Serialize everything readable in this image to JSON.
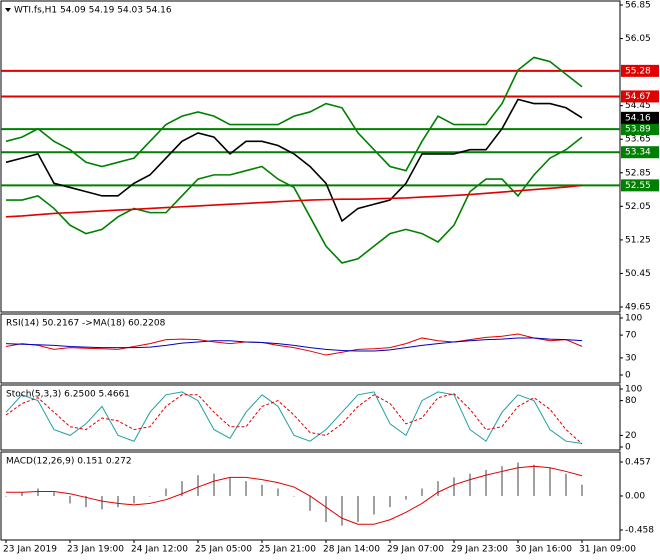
{
  "chart_data": [
    {
      "type": "line",
      "title": "WTI.fs,H1  54.09 54.19 54.03 54.16",
      "ylim": [
        49.65,
        56.85
      ],
      "yticks": [
        56.85,
        56.05,
        54.45,
        53.65,
        52.85,
        52.05,
        51.25,
        50.45,
        49.65
      ],
      "series": [
        {
          "color": "#000000",
          "values": [
            53.1,
            53.2,
            53.3,
            52.6,
            52.5,
            52.4,
            52.3,
            52.3,
            52.6,
            52.8,
            53.2,
            53.6,
            53.8,
            53.7,
            53.3,
            53.6,
            53.6,
            53.5,
            53.3,
            53.0,
            52.6,
            51.7,
            52.0,
            52.1,
            52.2,
            52.6,
            53.3,
            53.3,
            53.3,
            53.4,
            53.4,
            53.9,
            54.6,
            54.5,
            54.5,
            54.4,
            54.16
          ]
        },
        {
          "color": "#008000",
          "values": [
            53.6,
            53.7,
            53.9,
            53.6,
            53.4,
            53.1,
            53.0,
            53.1,
            53.2,
            53.6,
            54.0,
            54.2,
            54.3,
            54.2,
            54.0,
            54.0,
            54.0,
            54.0,
            54.2,
            54.3,
            54.5,
            54.4,
            53.8,
            53.4,
            53.0,
            52.9,
            53.6,
            54.2,
            54.0,
            54.0,
            54.0,
            54.5,
            55.3,
            55.6,
            55.5,
            55.2,
            54.9
          ]
        },
        {
          "color": "#008000",
          "values": [
            52.2,
            52.2,
            52.3,
            52.0,
            51.6,
            51.4,
            51.5,
            51.8,
            52.0,
            51.9,
            51.9,
            52.3,
            52.7,
            52.8,
            52.8,
            52.9,
            53.0,
            52.7,
            52.5,
            51.8,
            51.1,
            50.7,
            50.8,
            51.1,
            51.4,
            51.5,
            51.4,
            51.2,
            51.6,
            52.4,
            52.7,
            52.7,
            52.3,
            52.8,
            53.2,
            53.4,
            53.7
          ]
        },
        {
          "color": "#e00000",
          "values": [
            51.8,
            51.82,
            51.85,
            51.88,
            51.9,
            51.92,
            51.94,
            51.96,
            51.98,
            52.0,
            52.02,
            52.04,
            52.06,
            52.08,
            52.1,
            52.12,
            52.14,
            52.16,
            52.18,
            52.2,
            52.21,
            52.22,
            52.22,
            52.23,
            52.24,
            52.25,
            52.27,
            52.29,
            52.31,
            52.33,
            52.36,
            52.39,
            52.42,
            52.45,
            52.48,
            52.51,
            52.55
          ]
        }
      ],
      "levels": [
        {
          "value": 55.28,
          "color": "#e00000"
        },
        {
          "value": 54.67,
          "color": "#e00000"
        },
        {
          "value": 53.89,
          "color": "#008000"
        },
        {
          "value": 53.34,
          "color": "#008000"
        },
        {
          "value": 52.55,
          "color": "#008000"
        }
      ],
      "price_label": {
        "value": 54.16,
        "color": "#000000"
      }
    },
    {
      "type": "line",
      "title": "RSI(14) 50.2167  ->MA(18) 60.2208",
      "ylim": [
        0,
        100
      ],
      "yticks": [
        100,
        70,
        30,
        0
      ],
      "series": [
        {
          "color": "#e00000",
          "values": [
            50,
            55,
            52,
            45,
            48,
            47,
            46,
            45,
            50,
            55,
            62,
            63,
            62,
            58,
            55,
            58,
            57,
            52,
            48,
            42,
            35,
            40,
            45,
            46,
            48,
            55,
            65,
            60,
            58,
            62,
            66,
            68,
            72,
            65,
            60,
            62,
            50.2167
          ]
        },
        {
          "color": "#0000c0",
          "values": [
            55,
            54,
            53,
            52,
            50,
            49,
            48,
            48,
            48,
            49,
            52,
            56,
            58,
            60,
            60,
            58,
            57,
            55,
            52,
            48,
            45,
            43,
            42,
            42,
            44,
            48,
            52,
            55,
            58,
            60,
            62,
            63,
            65,
            65,
            63,
            62,
            60.2208
          ]
        }
      ]
    },
    {
      "type": "line",
      "title": "Stoch(5,3,3) 6.2500 5.4661",
      "ylim": [
        0,
        100
      ],
      "yticks": [
        100,
        80,
        20,
        0
      ],
      "series": [
        {
          "color": "#20a0a0",
          "values": [
            60,
            90,
            80,
            30,
            20,
            40,
            70,
            20,
            10,
            60,
            90,
            95,
            80,
            30,
            15,
            60,
            90,
            70,
            20,
            10,
            30,
            60,
            90,
            95,
            40,
            20,
            80,
            95,
            90,
            30,
            10,
            60,
            90,
            80,
            30,
            10,
            6.25
          ]
        },
        {
          "color": "#e00000",
          "dash": true,
          "values": [
            55,
            75,
            85,
            60,
            35,
            30,
            50,
            45,
            30,
            35,
            70,
            90,
            90,
            60,
            35,
            35,
            70,
            80,
            55,
            25,
            20,
            40,
            70,
            90,
            75,
            40,
            50,
            85,
            92,
            65,
            30,
            35,
            70,
            85,
            65,
            30,
            5.4661
          ]
        }
      ]
    },
    {
      "type": "bar",
      "title": "MACD(12,26,9) 0.151 0.272",
      "ylim": [
        -0.458,
        0.457
      ],
      "yticks": [
        0.457,
        {
          "value": 0,
          "label": "0.00"
        },
        -0.458
      ],
      "categories": [
        "23 Jan 2019",
        null,
        null,
        null,
        "23 Jan 19:00",
        null,
        null,
        null,
        "24 Jan 12:00",
        null,
        null,
        null,
        "25 Jan 05:00",
        null,
        null,
        null,
        "25 Jan 21:00",
        null,
        null,
        null,
        "28 Jan 14:00",
        null,
        null,
        null,
        "29 Jan 07:00",
        null,
        null,
        null,
        "29 Jan 23:00",
        null,
        null,
        null,
        "30 Jan 16:00",
        null,
        null,
        null,
        "31 Jan 09:00"
      ],
      "series": [
        {
          "color": "#a0a0a0",
          "style": "bar",
          "values": [
            0.0,
            0.05,
            0.1,
            0.05,
            -0.1,
            -0.15,
            -0.18,
            -0.15,
            -0.1,
            0.0,
            0.1,
            0.2,
            0.28,
            0.3,
            0.25,
            0.2,
            0.15,
            0.1,
            0.0,
            -0.2,
            -0.35,
            -0.4,
            -0.35,
            -0.25,
            -0.15,
            -0.05,
            0.1,
            0.2,
            0.25,
            0.3,
            0.35,
            0.4,
            0.45,
            0.42,
            0.38,
            0.3,
            0.151
          ]
        },
        {
          "color": "#e00000",
          "style": "line",
          "values": [
            0.05,
            0.05,
            0.06,
            0.06,
            0.03,
            -0.02,
            -0.07,
            -0.1,
            -0.12,
            -0.1,
            -0.05,
            0.03,
            0.12,
            0.2,
            0.25,
            0.25,
            0.22,
            0.18,
            0.12,
            0.0,
            -0.15,
            -0.3,
            -0.38,
            -0.38,
            -0.32,
            -0.22,
            -0.1,
            0.05,
            0.15,
            0.22,
            0.28,
            0.33,
            0.38,
            0.4,
            0.38,
            0.33,
            0.272
          ]
        }
      ]
    }
  ]
}
